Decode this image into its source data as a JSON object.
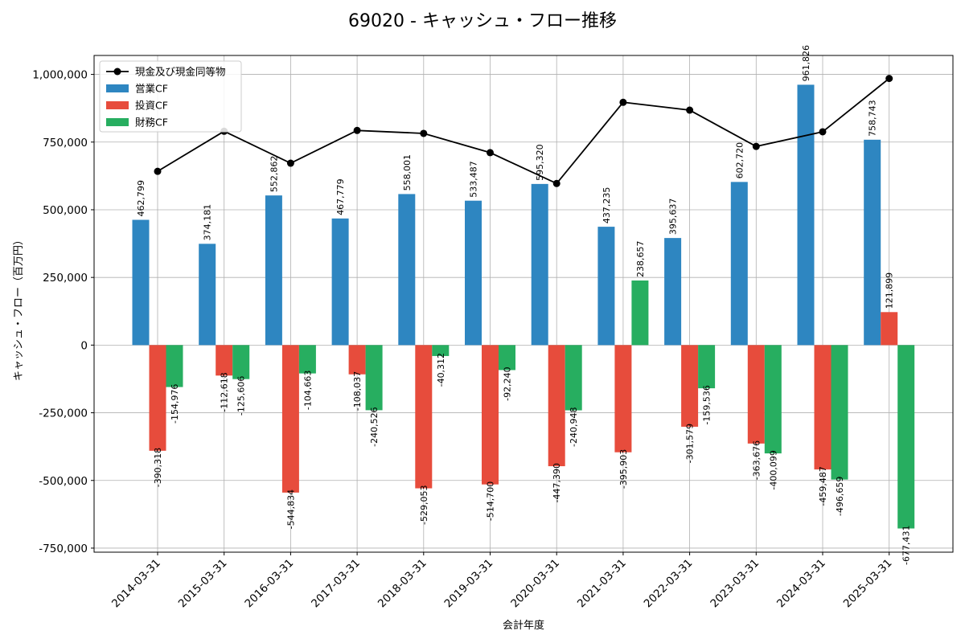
{
  "chart_data": {
    "type": "bar",
    "title": "69020 - キャッシュ・フロー推移",
    "xlabel": "会計年度",
    "ylabel": "キャッシュ・フロー（百万円）",
    "categories": [
      "2014-03-31",
      "2015-03-31",
      "2016-03-31",
      "2017-03-31",
      "2018-03-31",
      "2019-03-31",
      "2020-03-31",
      "2021-03-31",
      "2022-03-31",
      "2023-03-31",
      "2024-03-31",
      "2025-03-31"
    ],
    "series": [
      {
        "name": "営業CF",
        "type": "bar",
        "color": "#2e86c1",
        "values": [
          462799,
          374181,
          552862,
          467779,
          558001,
          533487,
          595320,
          437235,
          395637,
          602720,
          961826,
          758743
        ],
        "labels": [
          "462,799",
          "374,181",
          "552,862",
          "467,779",
          "558,001",
          "533,487",
          "595,320",
          "437,235",
          "395,637",
          "602,720",
          "961,826",
          "758,743"
        ]
      },
      {
        "name": "投資CF",
        "type": "bar",
        "color": "#e74c3c",
        "values": [
          -390318,
          -112618,
          -544834,
          -108037,
          -529053,
          -514700,
          -447390,
          -395903,
          -301579,
          -363676,
          -459487,
          121899
        ],
        "labels": [
          "-390,318",
          "-112,618",
          "-544,834",
          "-108,037",
          "-529,053",
          "-514,700",
          "-447,390",
          "-395,903",
          "-301,579",
          "-363,676",
          "-459,487",
          "121,899"
        ]
      },
      {
        "name": "財務CF",
        "type": "bar",
        "color": "#27ae60",
        "values": [
          -154976,
          -125606,
          -104663,
          -240526,
          -40312,
          -92240,
          -240948,
          238657,
          -159536,
          -400099,
          -496659,
          -677431
        ],
        "labels": [
          "-154,976",
          "-125,606",
          "-104,663",
          "-240,526",
          "-40,312",
          "-92,240",
          "-240,948",
          "238,657",
          "-159,536",
          "-400,099",
          "-496,659",
          "-677,431"
        ]
      },
      {
        "name": "現金及び現金同等物",
        "type": "line",
        "color": "#000000",
        "values": [
          642000,
          790000,
          672000,
          793000,
          782000,
          711000,
          597000,
          897000,
          868000,
          734000,
          788000,
          985000
        ]
      }
    ],
    "ylim": [
      -765000,
      1070000
    ],
    "yticks": [
      -750000,
      -500000,
      -250000,
      0,
      250000,
      500000,
      750000,
      1000000
    ],
    "ytick_labels": [
      "-750,000",
      "-500,000",
      "-250,000",
      "0",
      "250,000",
      "500,000",
      "750,000",
      "1,000,000"
    ],
    "grid": true,
    "legend_position": "top-left",
    "legend": [
      "現金及び現金同等物",
      "営業CF",
      "投資CF",
      "財務CF"
    ]
  }
}
